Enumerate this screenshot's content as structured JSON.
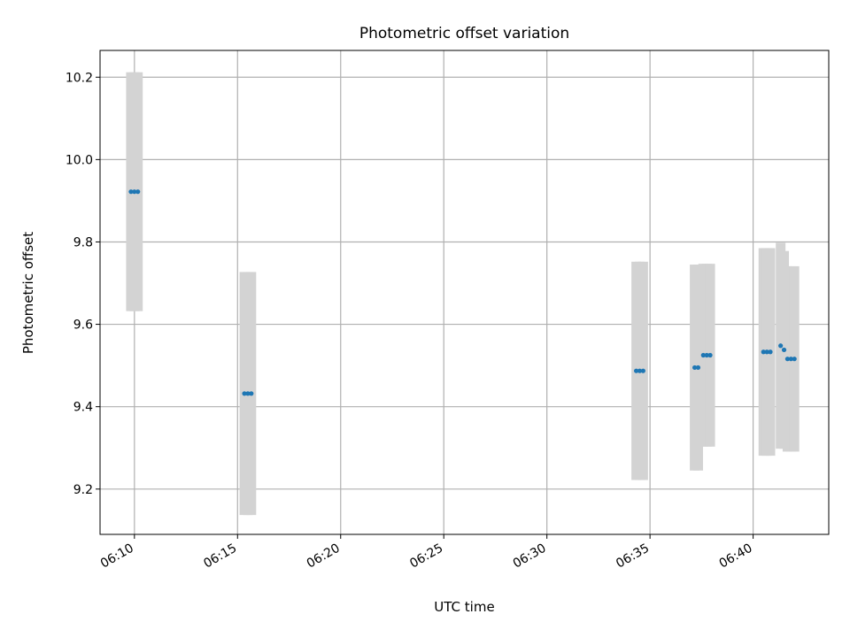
{
  "chart_data": {
    "type": "scatter",
    "title": "Photometric offset variation",
    "xlabel": "UTC time",
    "ylabel": "Photometric offset",
    "grid": true,
    "xlim": [
      "06:08:20",
      "06:43:40"
    ],
    "ylim": [
      9.09,
      10.265
    ],
    "xticks": [
      "06:10",
      "06:15",
      "06:20",
      "06:25",
      "06:30",
      "06:35",
      "06:40"
    ],
    "yticks": [
      9.2,
      9.4,
      9.6,
      9.8,
      10.0,
      10.2
    ],
    "colors": {
      "points": "#1f77b4",
      "error_bars": "#d3d3d3",
      "grid": "#b0b0b0"
    },
    "series": [
      {
        "points": [
          {
            "t": "06:09:50",
            "y": 9.922,
            "err": 0.29
          },
          {
            "t": "06:10:00",
            "y": 9.922,
            "err": 0.29
          },
          {
            "t": "06:10:10",
            "y": 9.922,
            "err": 0.29
          },
          {
            "t": "06:15:20",
            "y": 9.432,
            "err": 0.295
          },
          {
            "t": "06:15:30",
            "y": 9.432,
            "err": 0.295
          },
          {
            "t": "06:15:40",
            "y": 9.432,
            "err": 0.295
          },
          {
            "t": "06:34:20",
            "y": 9.487,
            "err": 0.265
          },
          {
            "t": "06:34:30",
            "y": 9.487,
            "err": 0.265
          },
          {
            "t": "06:34:40",
            "y": 9.487,
            "err": 0.265
          },
          {
            "t": "06:37:10",
            "y": 9.495,
            "err": 0.25
          },
          {
            "t": "06:37:20",
            "y": 9.495,
            "err": 0.25
          },
          {
            "t": "06:37:35",
            "y": 9.525,
            "err": 0.222
          },
          {
            "t": "06:37:45",
            "y": 9.525,
            "err": 0.222
          },
          {
            "t": "06:37:55",
            "y": 9.525,
            "err": 0.222
          },
          {
            "t": "06:40:30",
            "y": 9.533,
            "err": 0.252
          },
          {
            "t": "06:40:40",
            "y": 9.533,
            "err": 0.252
          },
          {
            "t": "06:40:50",
            "y": 9.533,
            "err": 0.252
          },
          {
            "t": "06:41:20",
            "y": 9.548,
            "err": 0.25
          },
          {
            "t": "06:41:30",
            "y": 9.538,
            "err": 0.24
          },
          {
            "t": "06:41:40",
            "y": 9.516,
            "err": 0.225
          },
          {
            "t": "06:41:50",
            "y": 9.516,
            "err": 0.225
          },
          {
            "t": "06:42:00",
            "y": 9.516,
            "err": 0.225
          }
        ]
      }
    ]
  }
}
